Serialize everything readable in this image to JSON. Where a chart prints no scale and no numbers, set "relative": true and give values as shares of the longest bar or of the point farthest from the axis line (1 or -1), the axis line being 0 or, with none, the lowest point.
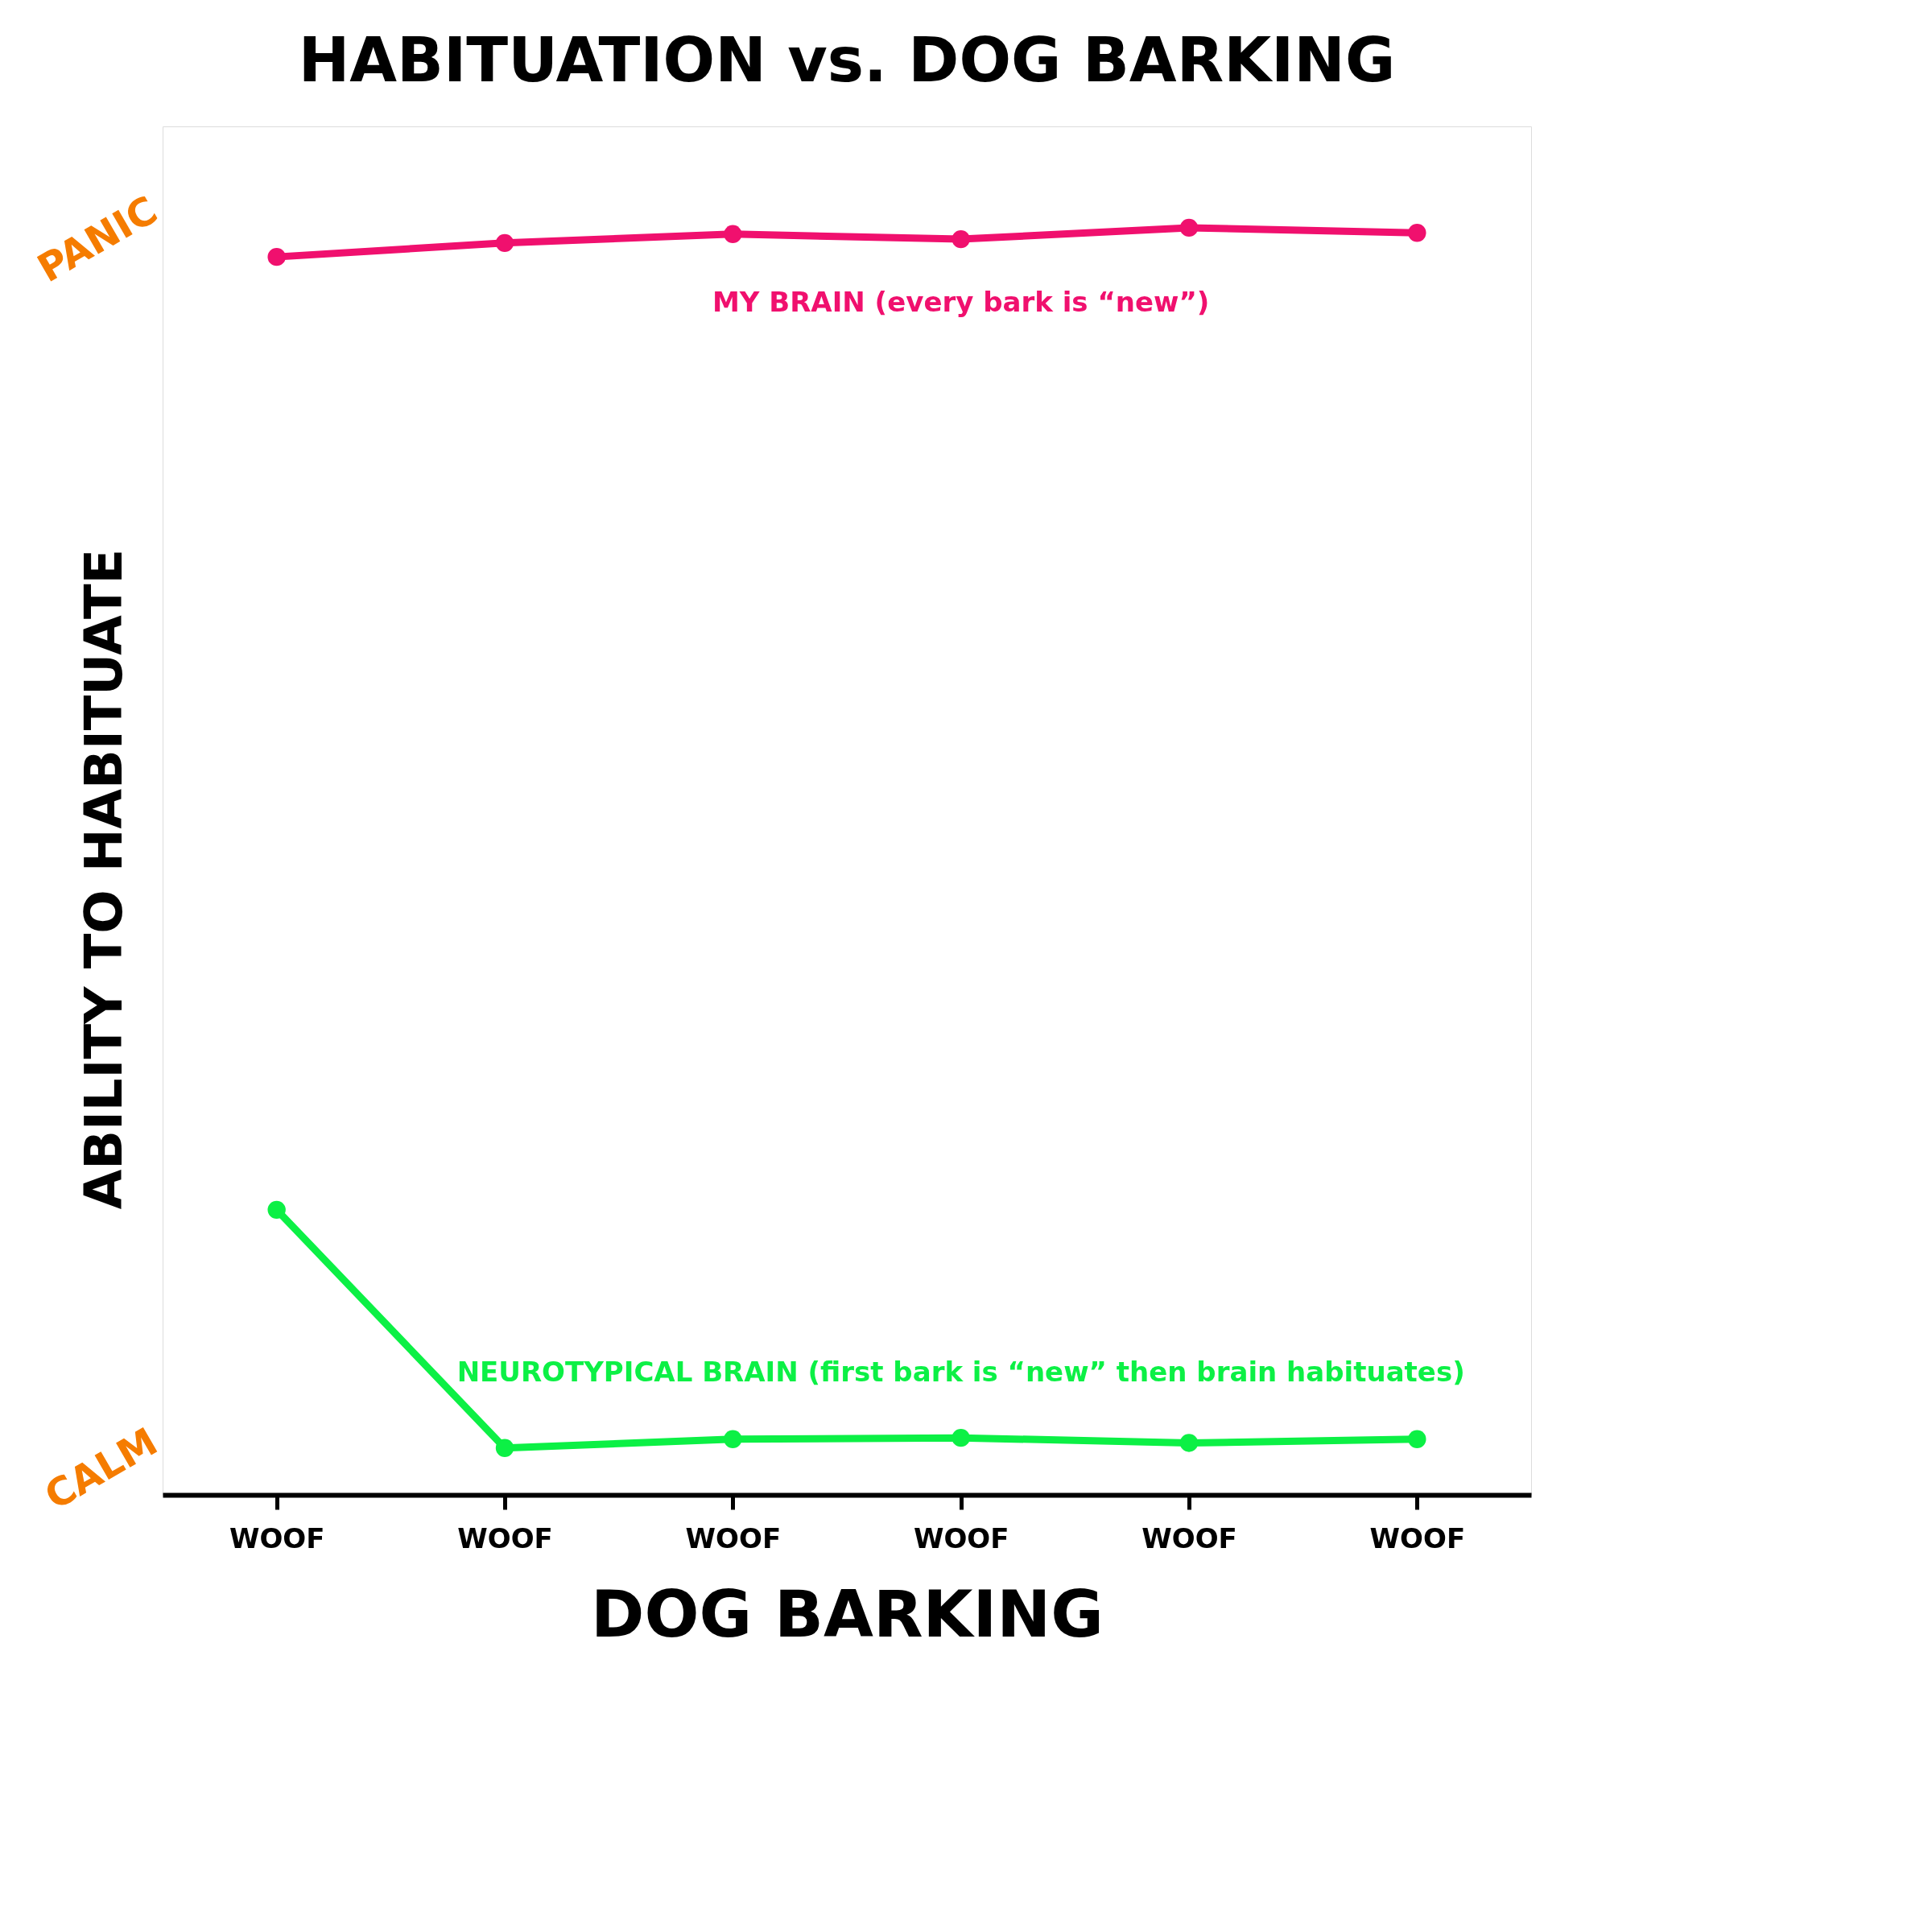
{
  "chart_data": {
    "type": "line",
    "title": "HABITUATION vs. DOG BARKING",
    "xlabel": "DOG BARKING",
    "ylabel": "ABILITY TO HABITUATE",
    "categories": [
      "WOOF",
      "WOOF",
      "WOOF",
      "WOOF",
      "WOOF",
      "WOOF"
    ],
    "relative": true,
    "marker": "circle",
    "line_style": "solid",
    "grid": false,
    "annotations": [
      "PANIC",
      "CALM"
    ],
    "series": [
      {
        "name": "MY BRAIN (every bark is “new”)",
        "color": "#f0106e",
        "values": [
          0.977,
          0.988,
          0.995,
          0.991,
          1.0,
          0.996
        ]
      },
      {
        "name": "NEUROTYPICAL BRAIN (first bark is “new” then brain habituates)",
        "color": "#0cf045",
        "values": [
          0.225,
          0.037,
          0.044,
          0.045,
          0.041,
          0.044
        ]
      }
    ]
  }
}
